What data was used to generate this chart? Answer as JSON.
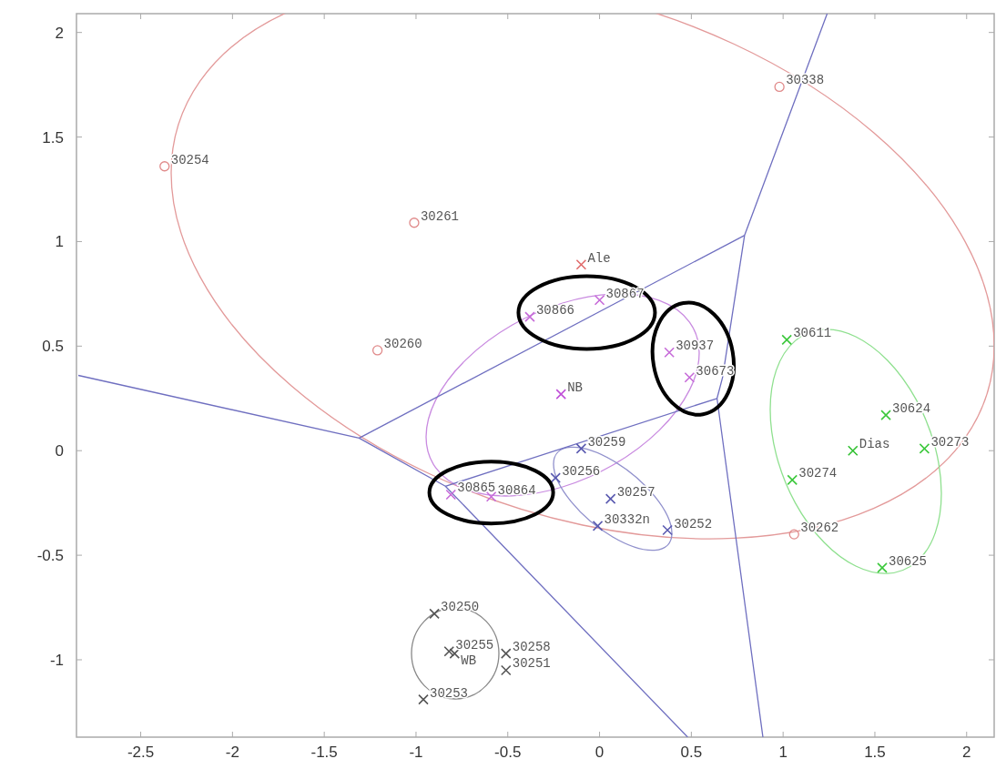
{
  "chart_data": {
    "type": "scatter",
    "xlim": [
      -2.85,
      2.15
    ],
    "ylim": [
      -1.37,
      2.09
    ],
    "xticks": [
      -2.5,
      -2,
      -1.5,
      -1,
      -0.5,
      0,
      0.5,
      1,
      1.5,
      2
    ],
    "yticks": [
      -1,
      -0.5,
      0,
      0.5,
      1,
      1.5,
      2
    ],
    "series": [
      {
        "type": "line",
        "color": "#6f6fc0",
        "x": [
          -2.84,
          -1.31,
          -0.84,
          0.48
        ],
        "values": [
          0.36,
          0.06,
          -0.17,
          -1.37
        ]
      },
      {
        "type": "line",
        "color": "#6f6fc0",
        "x": [
          -1.31,
          0.79
        ],
        "values": [
          0.06,
          1.03
        ]
      },
      {
        "type": "line",
        "color": "#6f6fc0",
        "x": [
          1.24,
          0.79,
          0.67,
          0.64,
          0.89
        ],
        "values": [
          2.09,
          1.03,
          0.35,
          0.25,
          -1.37
        ]
      },
      {
        "type": "line",
        "color": "#6f6fc0",
        "x": [
          -0.84,
          0.64
        ],
        "values": [
          -0.17,
          0.25
        ]
      },
      {
        "marker": "circle",
        "color": "#e08a8a",
        "x": [
          -2.37,
          -1.01,
          -1.21,
          0.98,
          1.06
        ],
        "values": [
          1.36,
          1.09,
          0.48,
          1.74,
          -0.4
        ]
      },
      {
        "marker": "cross",
        "color": "#c66ad8",
        "x": [
          -0.38,
          0,
          0.38,
          0.49,
          -0.81,
          -0.59
        ],
        "values": [
          0.64,
          0.72,
          0.47,
          0.35,
          -0.21,
          -0.22
        ]
      },
      {
        "marker": "cross",
        "color": "#5a5ab0",
        "x": [
          -0.1,
          -0.24,
          0.06,
          -0.01,
          0.37
        ],
        "values": [
          0.01,
          -0.13,
          -0.23,
          -0.36,
          -0.38
        ]
      },
      {
        "marker": "cross",
        "color": "#3cc83c",
        "x": [
          1.02,
          1.56,
          1.77,
          1.05,
          1.54
        ],
        "values": [
          0.53,
          0.17,
          0.01,
          -0.14,
          -0.56
        ]
      },
      {
        "marker": "cross",
        "color": "#555555",
        "x": [
          -0.9,
          -0.82,
          -0.51,
          -0.51,
          -0.96
        ],
        "values": [
          -0.78,
          -0.96,
          -0.97,
          -1.05,
          -1.19
        ]
      },
      {
        "marker": "cross",
        "colors": [
          "#e06a6a",
          "#c050d8",
          "#30c030",
          "#555555"
        ],
        "x": [
          -0.1,
          -0.21,
          1.38,
          -0.79
        ],
        "values": [
          0.89,
          0.27,
          0,
          -0.97
        ]
      }
    ],
    "annotations": [
      {
        "text": "30254",
        "x": -2.37,
        "y": 1.36
      },
      {
        "text": "30261",
        "x": -1.01,
        "y": 1.09
      },
      {
        "text": "30260",
        "x": -1.21,
        "y": 0.48
      },
      {
        "text": "30338",
        "x": 0.98,
        "y": 1.74
      },
      {
        "text": "30262",
        "x": 1.06,
        "y": -0.4
      },
      {
        "text": "30866",
        "x": -0.38,
        "y": 0.64
      },
      {
        "text": "30867",
        "x": 0,
        "y": 0.72
      },
      {
        "text": "30937",
        "x": 0.38,
        "y": 0.47
      },
      {
        "text": "30673",
        "x": 0.49,
        "y": 0.35
      },
      {
        "text": "30865",
        "x": -0.81,
        "y": -0.21
      },
      {
        "text": "30864",
        "x": -0.59,
        "y": -0.22
      },
      {
        "text": "30259",
        "x": -0.1,
        "y": 0.01
      },
      {
        "text": "30256",
        "x": -0.24,
        "y": -0.13
      },
      {
        "text": "30257",
        "x": 0.06,
        "y": -0.23
      },
      {
        "text": "30332n",
        "x": -0.01,
        "y": -0.36
      },
      {
        "text": "30252",
        "x": 0.37,
        "y": -0.38
      },
      {
        "text": "30611",
        "x": 1.02,
        "y": 0.53
      },
      {
        "text": "30624",
        "x": 1.56,
        "y": 0.17
      },
      {
        "text": "30273",
        "x": 1.77,
        "y": 0.01
      },
      {
        "text": "30274",
        "x": 1.05,
        "y": -0.14
      },
      {
        "text": "30625",
        "x": 1.54,
        "y": -0.56
      },
      {
        "text": "30250",
        "x": -0.9,
        "y": -0.78
      },
      {
        "text": "30255",
        "x": -0.82,
        "y": -0.96
      },
      {
        "text": "30258",
        "x": -0.51,
        "y": -0.97
      },
      {
        "text": "30251",
        "x": -0.51,
        "y": -1.05
      },
      {
        "text": "30253",
        "x": -0.96,
        "y": -1.19
      },
      {
        "text": "Ale",
        "x": -0.1,
        "y": 0.89
      },
      {
        "text": "NB",
        "x": -0.21,
        "y": 0.27
      },
      {
        "text": "Dias",
        "x": 1.38,
        "y": 0
      },
      {
        "text": "WB",
        "x": -0.79,
        "y": -0.97
      }
    ]
  }
}
